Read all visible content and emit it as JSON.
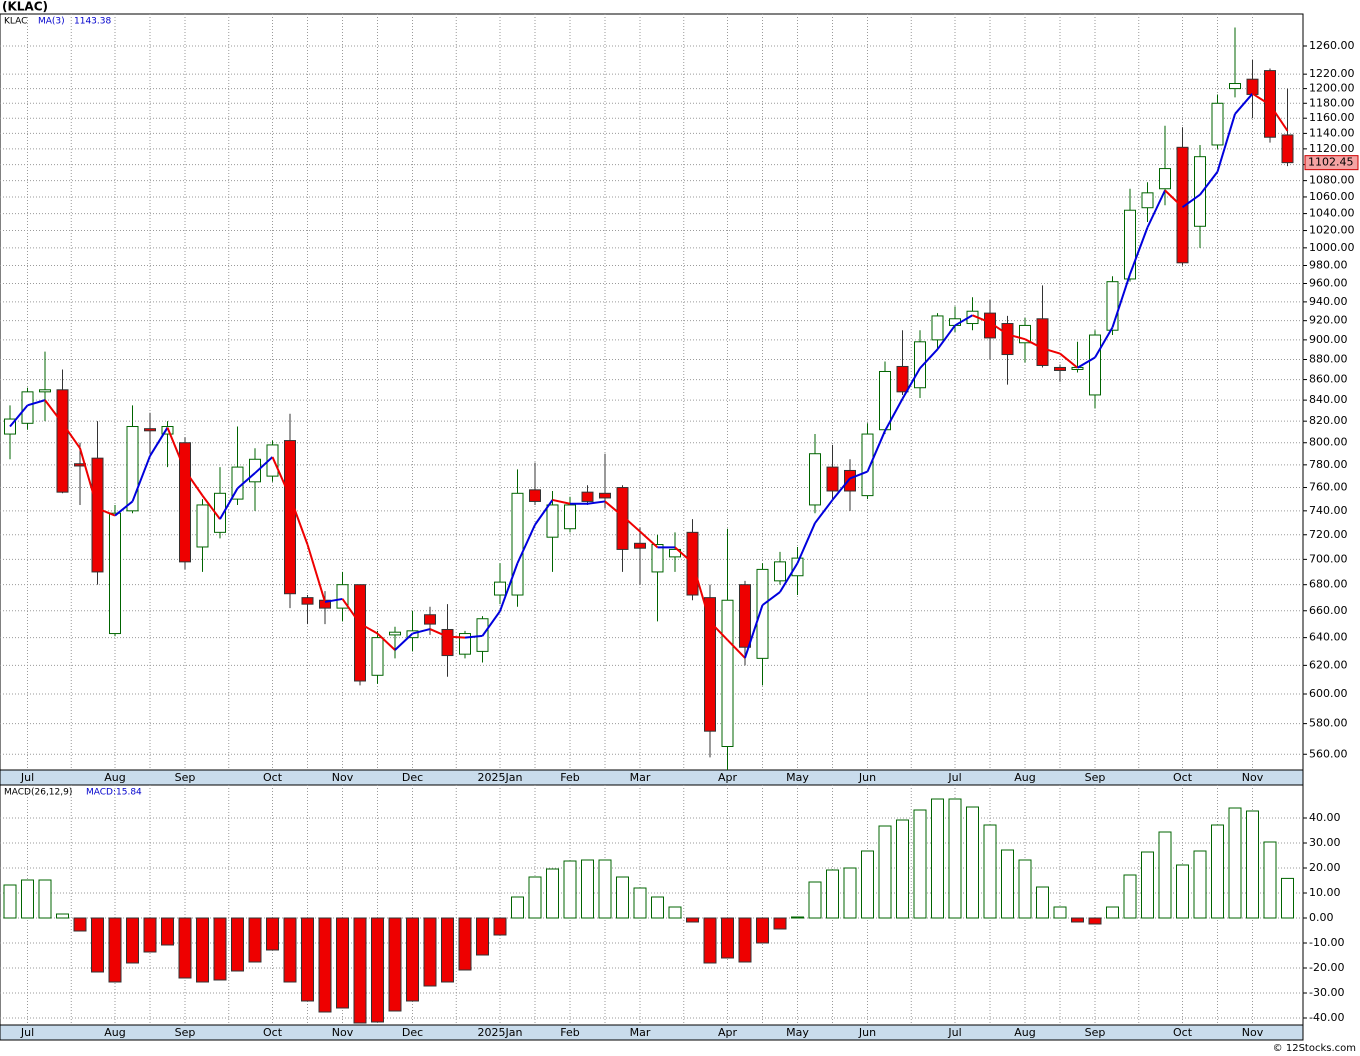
{
  "chart_data": [
    {
      "type": "candlestick",
      "title": "(KLAC)",
      "ticker": "KLAC",
      "ma_name": "MA(3)",
      "log_scale": true,
      "grid": true,
      "up_color": "#006400",
      "down_color": "#ee0000",
      "categories": [
        null,
        "Jul",
        null,
        null,
        null,
        null,
        "Aug",
        null,
        null,
        null,
        "Sep",
        null,
        null,
        null,
        null,
        "Oct",
        null,
        null,
        null,
        "Nov",
        null,
        null,
        null,
        "Dec",
        null,
        null,
        null,
        null,
        "2025Jan",
        null,
        null,
        null,
        "Feb",
        null,
        null,
        null,
        "Mar",
        null,
        null,
        null,
        null,
        "Apr",
        null,
        null,
        null,
        "May",
        null,
        null,
        null,
        "Jun",
        null,
        null,
        null,
        null,
        "Jul",
        null,
        null,
        null,
        "Aug",
        null,
        null,
        null,
        "Sep",
        null,
        null,
        null,
        null,
        "Oct",
        null,
        null,
        null,
        "Nov",
        null,
        null
      ],
      "open": [
        808,
        818,
        848,
        850,
        781,
        786,
        643,
        740,
        813,
        808,
        800,
        710,
        722,
        750,
        765,
        770,
        802,
        670,
        668,
        662,
        680,
        613,
        642,
        640,
        657,
        646,
        628,
        630,
        672,
        672,
        758,
        718,
        725,
        756,
        755,
        760,
        713,
        690,
        702,
        722,
        670,
        565,
        680,
        625,
        683,
        687,
        745,
        778,
        775,
        753,
        812,
        873,
        852,
        900,
        915,
        917,
        928,
        917,
        897,
        922,
        872,
        870,
        845,
        910,
        965,
        1047,
        1070,
        1122,
        1025,
        1125,
        1200,
        1213,
        1225,
        1138
      ],
      "high": [
        835,
        852,
        888,
        870,
        800,
        820,
        745,
        835,
        828,
        820,
        805,
        750,
        778,
        815,
        795,
        802,
        827,
        672,
        675,
        690,
        680,
        645,
        648,
        660,
        663,
        665,
        645,
        656,
        697,
        776,
        782,
        757,
        752,
        762,
        790,
        762,
        726,
        720,
        722,
        733,
        680,
        725,
        683,
        697,
        706,
        710,
        808,
        798,
        785,
        818,
        878,
        910,
        910,
        928,
        935,
        945,
        942,
        925,
        923,
        958,
        875,
        898,
        910,
        968,
        1070,
        1078,
        1150,
        1148,
        1125,
        1192,
        1287,
        1240,
        1228,
        1200
      ],
      "low": [
        785,
        812,
        820,
        755,
        745,
        680,
        641,
        738,
        790,
        778,
        692,
        690,
        717,
        745,
        740,
        765,
        662,
        650,
        650,
        652,
        606,
        607,
        625,
        630,
        642,
        612,
        625,
        622,
        665,
        663,
        745,
        690,
        722,
        745,
        742,
        690,
        680,
        652,
        690,
        668,
        558,
        550,
        620,
        606,
        680,
        672,
        738,
        750,
        740,
        750,
        808,
        845,
        842,
        890,
        908,
        910,
        880,
        855,
        877,
        872,
        858,
        867,
        832,
        905,
        962,
        1030,
        1050,
        980,
        1000,
        1120,
        1188,
        1160,
        1128,
        1098
      ],
      "close": [
        822,
        848,
        850,
        756,
        779,
        690,
        738,
        815,
        811,
        815,
        698,
        745,
        755,
        778,
        785,
        798,
        673,
        665,
        662,
        680,
        609,
        640,
        644,
        645,
        650,
        627,
        643,
        654,
        682,
        755,
        748,
        745,
        745,
        748,
        751,
        708,
        709,
        712,
        708,
        672,
        575,
        668,
        633,
        692,
        698,
        701,
        790,
        757,
        757,
        808,
        868,
        848,
        898,
        925,
        922,
        930,
        902,
        885,
        915,
        874,
        869,
        872,
        905,
        962,
        1044,
        1065,
        1095,
        983,
        1110,
        1180,
        1207,
        1192,
        1135,
        1102.45
      ],
      "ma": {
        "name": "MA(3)",
        "up_color": "#0000dd",
        "down_color": "#ee0000",
        "values": [
          815,
          835,
          840,
          818,
          795,
          742,
          736,
          748,
          788,
          814,
          775,
          753,
          733,
          759.3,
          772.7,
          787,
          752,
          712,
          666.7,
          669,
          650.3,
          643,
          631,
          643,
          646.3,
          640.7,
          640,
          641.3,
          659.7,
          697,
          728.3,
          749.3,
          746,
          746,
          748,
          735.7,
          722.7,
          709.7,
          709.7,
          697.3,
          651.7,
          638.3,
          625.3,
          664.3,
          674.3,
          697,
          729.7,
          749.3,
          768,
          774,
          811,
          841.3,
          871.3,
          890.3,
          915,
          925.7,
          918,
          905.7,
          900.7,
          891.3,
          886,
          871.7,
          882,
          913,
          970.3,
          1023.7,
          1068,
          1047.7,
          1062.7,
          1091,
          1165.7,
          1193,
          1178,
          1143.38
        ]
      },
      "ylim": [
        550,
        1307
      ],
      "yticks": [
        {
          "value": 560,
          "label": "560.00"
        },
        {
          "value": 580,
          "label": "580.00"
        },
        {
          "value": 600,
          "label": "600.00"
        },
        {
          "value": 620,
          "label": "620.00"
        },
        {
          "value": 640,
          "label": "640.00"
        },
        {
          "value": 660,
          "label": "660.00"
        },
        {
          "value": 680,
          "label": "680.00"
        },
        {
          "value": 700,
          "label": "700.00"
        },
        {
          "value": 720,
          "label": "720.00"
        },
        {
          "value": 740,
          "label": "740.00"
        },
        {
          "value": 760,
          "label": "760.00"
        },
        {
          "value": 780,
          "label": "780.00"
        },
        {
          "value": 800,
          "label": "800.00"
        },
        {
          "value": 820,
          "label": "820.00"
        },
        {
          "value": 840,
          "label": "840.00"
        },
        {
          "value": 860,
          "label": "860.00"
        },
        {
          "value": 880,
          "label": "880.00"
        },
        {
          "value": 900,
          "label": "900.00"
        },
        {
          "value": 920,
          "label": "920.00"
        },
        {
          "value": 940,
          "label": "940.00"
        },
        {
          "value": 960,
          "label": "960.00"
        },
        {
          "value": 980,
          "label": "980.00"
        },
        {
          "value": 1000,
          "label": "1000.00"
        },
        {
          "value": 1020,
          "label": "1020.00"
        },
        {
          "value": 1040,
          "label": "1040.00"
        },
        {
          "value": 1060,
          "label": "1060.00"
        },
        {
          "value": 1080,
          "label": "1080.00"
        },
        {
          "value": 1100,
          "label": "1100.00"
        },
        {
          "value": 1120,
          "label": "1120.00"
        },
        {
          "value": 1140,
          "label": "1140.00"
        },
        {
          "value": 1160,
          "label": "1160.00"
        },
        {
          "value": 1180,
          "label": "1180.00"
        },
        {
          "value": 1200,
          "label": "1200.00"
        },
        {
          "value": 1220,
          "label": "1220.00"
        },
        {
          "value": 1260,
          "label": "1260.00"
        }
      ]
    },
    {
      "type": "bar",
      "title": "MACD(26,12,9)",
      "label": "MACD:15.84",
      "grid": true,
      "up_color": "#006400",
      "down_color": "#ee0000",
      "values": [
        13.2,
        15.2,
        15.2,
        1.6,
        -5.2,
        -21.6,
        -25.6,
        -18,
        -13.6,
        -10.8,
        -24,
        -25.6,
        -24.8,
        -21.2,
        -17.6,
        -12.8,
        -25.6,
        -33.2,
        -37.6,
        -36,
        -42,
        -41.6,
        -37.2,
        -33.2,
        -27.2,
        -25.6,
        -20.8,
        -14.8,
        -6.8,
        8.4,
        16.4,
        19.6,
        22.8,
        23.2,
        23.2,
        16.4,
        12,
        8.4,
        4.4,
        -1.6,
        -18,
        -16,
        -17.6,
        -10,
        -4.4,
        0.4,
        14.4,
        19.2,
        20,
        26.8,
        36.8,
        39.2,
        43.2,
        47.6,
        47.6,
        44.4,
        37.2,
        27.2,
        23.2,
        12.4,
        4.4,
        -1.6,
        -2.4,
        4.4,
        17.2,
        26.4,
        34.4,
        21.2,
        26.8,
        37.2,
        44,
        42.8,
        30.4,
        15.84
      ],
      "ylim": [
        -42.8,
        53.2
      ],
      "yticks": [
        {
          "value": -40,
          "label": "-40.00"
        },
        {
          "value": -30,
          "label": "-30.00"
        },
        {
          "value": -20,
          "label": "-20.00"
        },
        {
          "value": -10,
          "label": "-10.00"
        },
        {
          "value": 0,
          "label": "0.00"
        },
        {
          "value": 10,
          "label": "10.00"
        },
        {
          "value": 20,
          "label": "20.00"
        },
        {
          "value": 30,
          "label": "30.00"
        },
        {
          "value": 40,
          "label": "40.00"
        }
      ]
    }
  ],
  "footer": "© 12Stocks.com"
}
